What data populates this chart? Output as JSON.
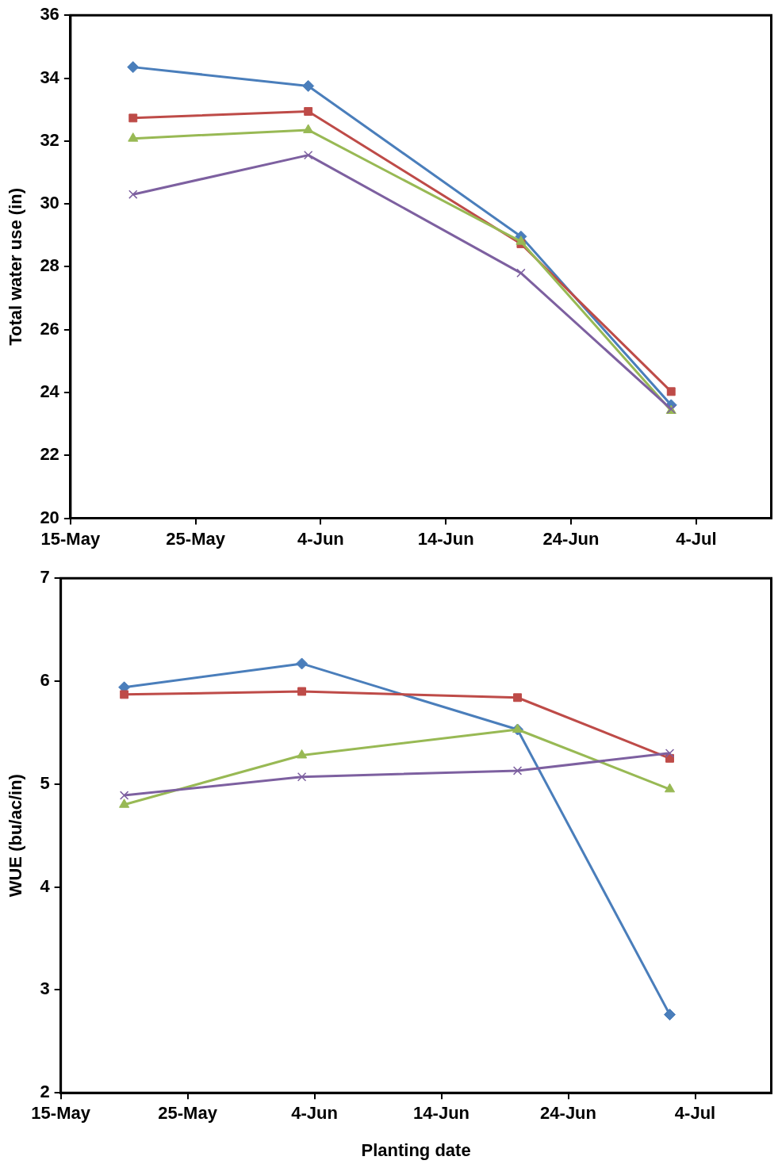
{
  "chart_data": [
    {
      "type": "line",
      "ylabel": "Total water use (in)",
      "x": [
        "--05-20",
        "--06-03",
        "--06-20",
        "--07-02"
      ],
      "xlim": [
        "--05-15",
        "--07-10"
      ],
      "xticks": [
        {
          "value": "--05-15",
          "label": "15-May"
        },
        {
          "value": "--05-25",
          "label": "25-May"
        },
        {
          "value": "--06-04",
          "label": "4-Jun"
        },
        {
          "value": "--06-14",
          "label": "14-Jun"
        },
        {
          "value": "--06-24",
          "label": "24-Jun"
        },
        {
          "value": "--07-04",
          "label": "4-Jul"
        }
      ],
      "ylim": [
        20,
        36
      ],
      "yticks": [
        20,
        22,
        24,
        26,
        28,
        30,
        32,
        34,
        36
      ],
      "grid": false,
      "legend": false,
      "series": [
        {
          "color": "#4a7ebb",
          "marker": "diamond",
          "values": [
            34.35,
            33.75,
            28.96,
            23.6
          ]
        },
        {
          "color": "#be4b48",
          "marker": "square",
          "values": [
            32.73,
            32.94,
            28.73,
            24.03
          ]
        },
        {
          "color": "#98b954",
          "marker": "triangle",
          "values": [
            32.08,
            32.35,
            28.8,
            23.42
          ]
        },
        {
          "color": "#7d60a0",
          "marker": "cross",
          "values": [
            30.3,
            31.55,
            27.8,
            23.47
          ]
        }
      ]
    },
    {
      "type": "line",
      "ylabel": "WUE (bu/ac/in)",
      "xlabel": "Planting date",
      "x": [
        "--05-20",
        "--06-03",
        "--06-20",
        "--07-02"
      ],
      "xlim": [
        "--05-15",
        "--07-10"
      ],
      "xticks": [
        {
          "value": "--05-15",
          "label": "15-May"
        },
        {
          "value": "--05-25",
          "label": "25-May"
        },
        {
          "value": "--06-04",
          "label": "4-Jun"
        },
        {
          "value": "--06-14",
          "label": "14-Jun"
        },
        {
          "value": "--06-24",
          "label": "24-Jun"
        },
        {
          "value": "--07-04",
          "label": "4-Jul"
        }
      ],
      "ylim": [
        2,
        7
      ],
      "yticks": [
        2,
        3,
        4,
        5,
        6,
        7
      ],
      "grid": false,
      "legend": false,
      "series": [
        {
          "color": "#4a7ebb",
          "marker": "diamond",
          "values": [
            5.94,
            6.17,
            5.53,
            2.76
          ]
        },
        {
          "color": "#be4b48",
          "marker": "square",
          "values": [
            5.87,
            5.9,
            5.84,
            5.25
          ]
        },
        {
          "color": "#98b954",
          "marker": "triangle",
          "values": [
            4.8,
            5.28,
            5.53,
            4.95
          ]
        },
        {
          "color": "#7d60a0",
          "marker": "cross",
          "values": [
            4.89,
            5.07,
            5.13,
            5.3
          ]
        }
      ]
    }
  ]
}
